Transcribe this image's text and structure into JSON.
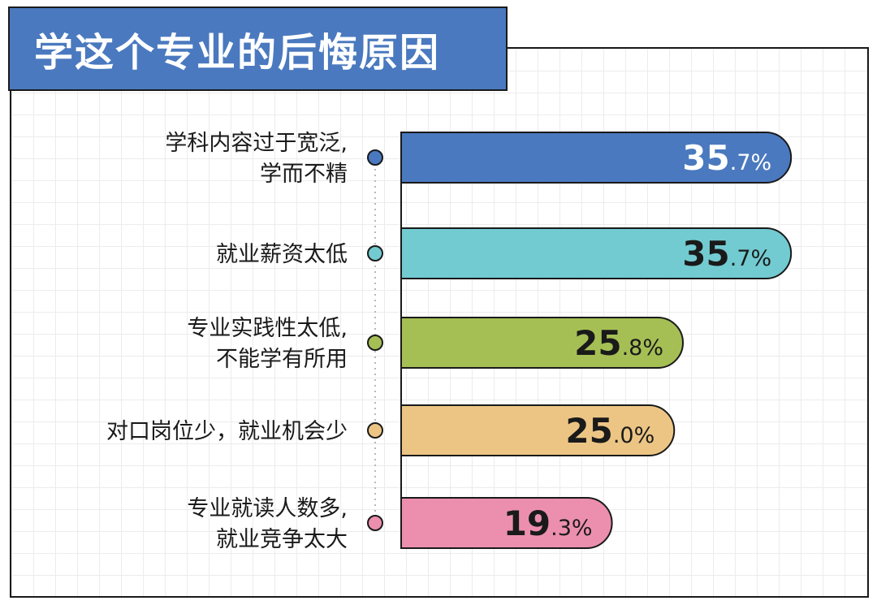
{
  "title": "学这个专业的后悔原因",
  "chart_data": {
    "type": "bar",
    "orientation": "horizontal",
    "title": "学这个专业的后悔原因",
    "unit": "%",
    "categories": [
      [
        "学科内容过于宽泛,",
        "学而不精"
      ],
      [
        "就业薪资太低"
      ],
      [
        "专业实践性太低,",
        "不能学有所用"
      ],
      [
        "对口岗位少，就业机会少"
      ],
      [
        "专业就读人数多,",
        "就业竞争太大"
      ]
    ],
    "values": [
      35.7,
      35.7,
      25.8,
      25.0,
      19.3
    ],
    "labels": [
      {
        "int": "35",
        "dec": ".7%"
      },
      {
        "int": "35",
        "dec": ".7%"
      },
      {
        "int": "25",
        "dec": ".8%"
      },
      {
        "int": "25",
        "dec": ".0%"
      },
      {
        "int": "19",
        "dec": ".3%"
      }
    ],
    "colors": [
      "#4a79bf",
      "#72cbd1",
      "#a5bf55",
      "#ecc585",
      "#ec8fae"
    ],
    "label_colors": [
      "#ffffff",
      "#1a1a1a",
      "#1a1a1a",
      "#1a1a1a",
      "#1a1a1a"
    ],
    "grid": true,
    "legend": "none"
  }
}
